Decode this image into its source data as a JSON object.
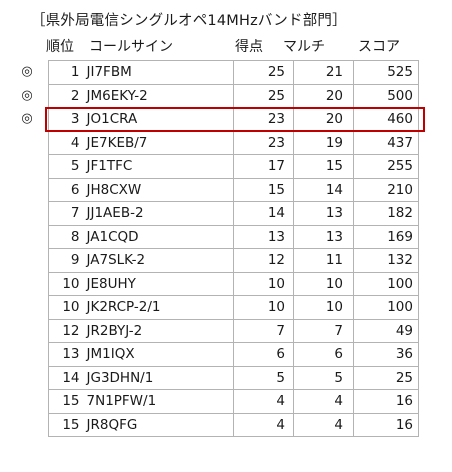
{
  "title": "［県外局電信シングルオペ14MHzバンド部門］",
  "headers": {
    "rank": "順位",
    "callsign": "コールサイン",
    "points": "得点",
    "multi": "マルチ",
    "score": "スコア"
  },
  "mark_symbol": "◎",
  "rows": [
    {
      "rank": "1",
      "call": "JI7FBM",
      "points": "25",
      "multi": "21",
      "score": "525",
      "mark": "◎"
    },
    {
      "rank": "2",
      "call": "JM6EKY-2",
      "points": "25",
      "multi": "20",
      "score": "500",
      "mark": "◎"
    },
    {
      "rank": "3",
      "call": "JO1CRA",
      "points": "23",
      "multi": "20",
      "score": "460",
      "mark": "◎"
    },
    {
      "rank": "4",
      "call": "JE7KEB/7",
      "points": "23",
      "multi": "19",
      "score": "437",
      "mark": ""
    },
    {
      "rank": "5",
      "call": "JF1TFC",
      "points": "17",
      "multi": "15",
      "score": "255",
      "mark": ""
    },
    {
      "rank": "6",
      "call": "JH8CXW",
      "points": "15",
      "multi": "14",
      "score": "210",
      "mark": ""
    },
    {
      "rank": "7",
      "call": "JJ1AEB-2",
      "points": "14",
      "multi": "13",
      "score": "182",
      "mark": ""
    },
    {
      "rank": "8",
      "call": "JA1CQD",
      "points": "13",
      "multi": "13",
      "score": "169",
      "mark": ""
    },
    {
      "rank": "9",
      "call": "JA7SLK-2",
      "points": "12",
      "multi": "11",
      "score": "132",
      "mark": ""
    },
    {
      "rank": "10",
      "call": "JE8UHY",
      "points": "10",
      "multi": "10",
      "score": "100",
      "mark": ""
    },
    {
      "rank": "10",
      "call": "JK2RCP-2/1",
      "points": "10",
      "multi": "10",
      "score": "100",
      "mark": ""
    },
    {
      "rank": "12",
      "call": "JR2BYJ-2",
      "points": "7",
      "multi": "7",
      "score": "49",
      "mark": ""
    },
    {
      "rank": "13",
      "call": "JM1IQX",
      "points": "6",
      "multi": "6",
      "score": "36",
      "mark": ""
    },
    {
      "rank": "14",
      "call": "JG3DHN/1",
      "points": "5",
      "multi": "5",
      "score": "25",
      "mark": ""
    },
    {
      "rank": "15",
      "call": "7N1PFW/1",
      "points": "4",
      "multi": "4",
      "score": "16",
      "mark": ""
    },
    {
      "rank": "15",
      "call": "JR8QFG",
      "points": "4",
      "multi": "4",
      "score": "16",
      "mark": ""
    }
  ],
  "highlight": {
    "row_index": 2,
    "color": "#c00000"
  }
}
